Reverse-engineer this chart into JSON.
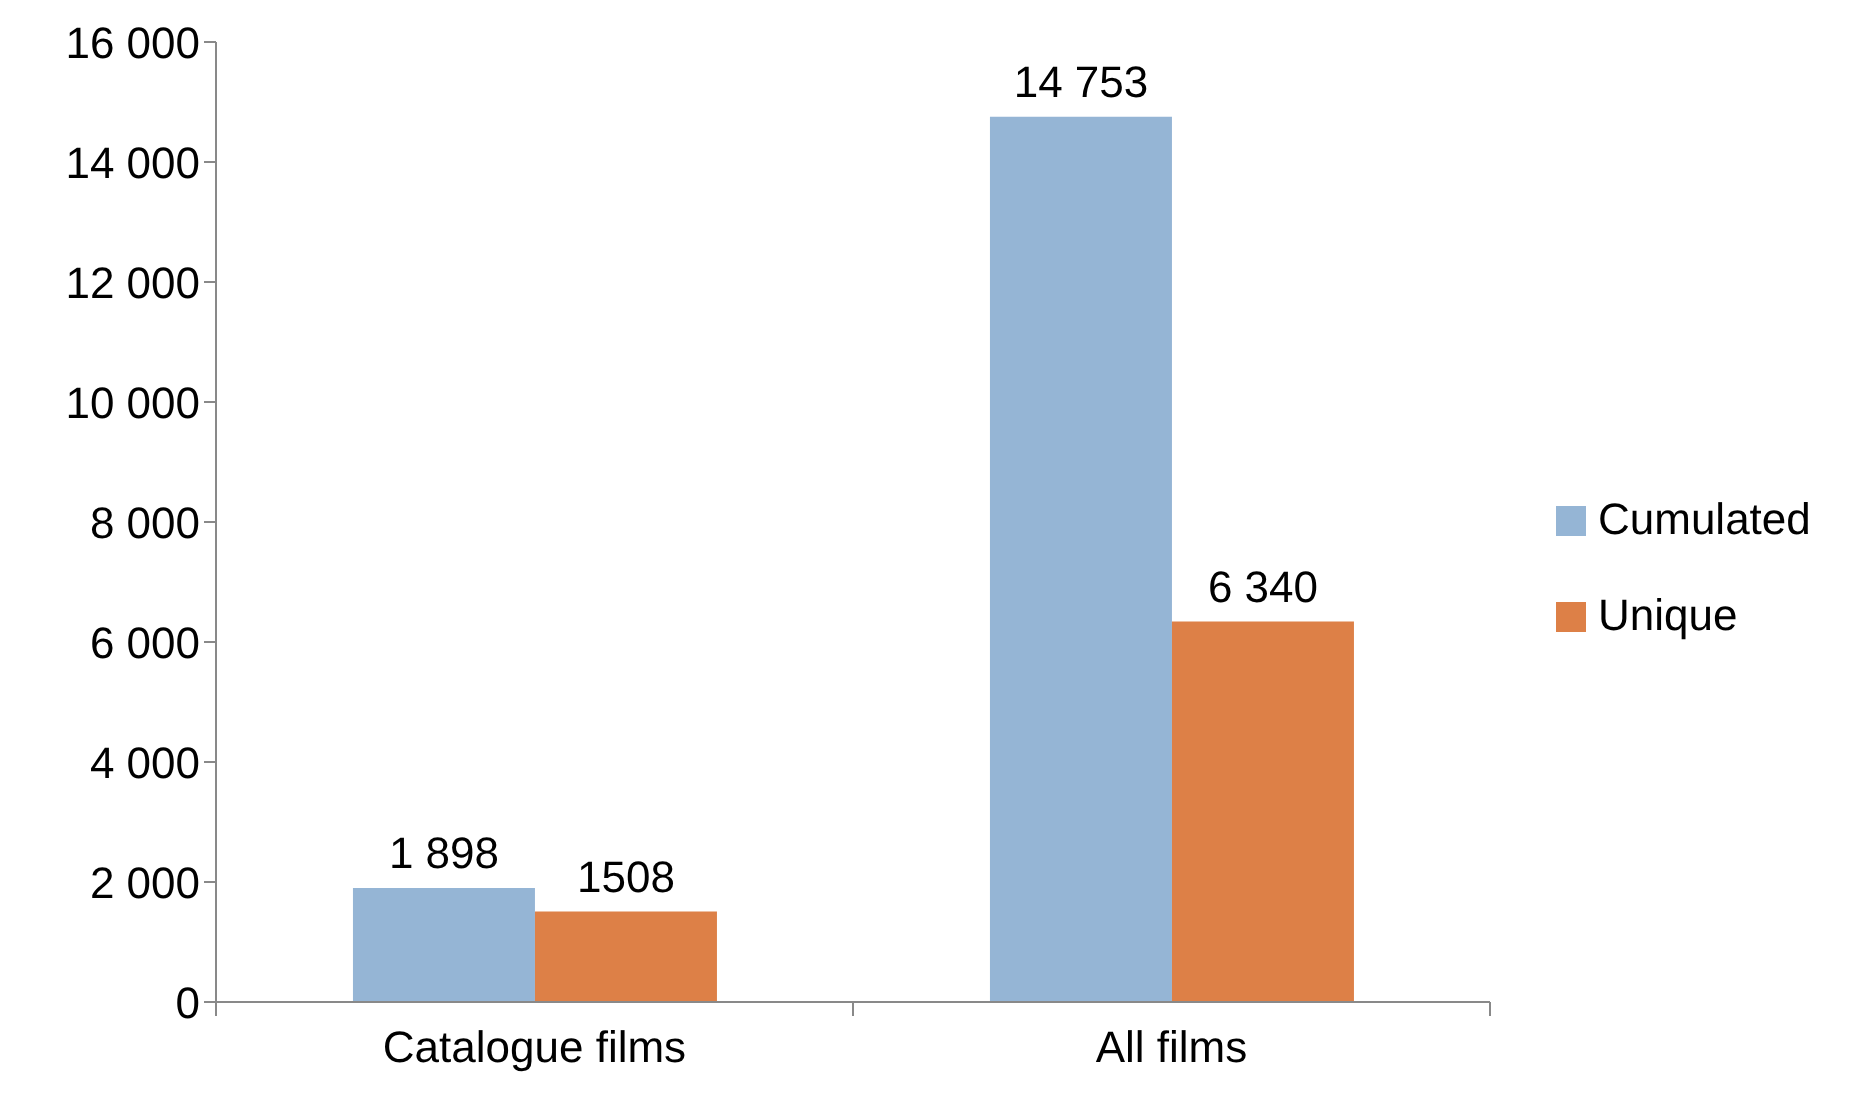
{
  "chart_data": {
    "type": "bar",
    "categories": [
      "Catalogue films",
      "All films"
    ],
    "series": [
      {
        "name": "Cumulated",
        "color": "#95b5d5",
        "values": [
          1898,
          14753
        ],
        "value_labels": [
          "1 898",
          "14 753"
        ]
      },
      {
        "name": "Unique",
        "color": "#dd8047",
        "values": [
          1508,
          6340
        ],
        "value_labels": [
          "1508",
          "6 340"
        ]
      }
    ],
    "ylim": [
      0,
      16000
    ],
    "yticks": [
      0,
      {
        "value": 2000,
        "label": "2 000"
      },
      {
        "value": 4000,
        "label": "4 000"
      },
      {
        "value": 6000,
        "label": "6 000"
      },
      {
        "value": 8000,
        "label": "8 000"
      },
      {
        "value": 10000,
        "label": "10 000"
      },
      {
        "value": 12000,
        "label": "12 000"
      },
      {
        "value": 14000,
        "label": "14 000"
      },
      {
        "value": 16000,
        "label": "16 000"
      }
    ],
    "grid": false,
    "legend": "right"
  }
}
